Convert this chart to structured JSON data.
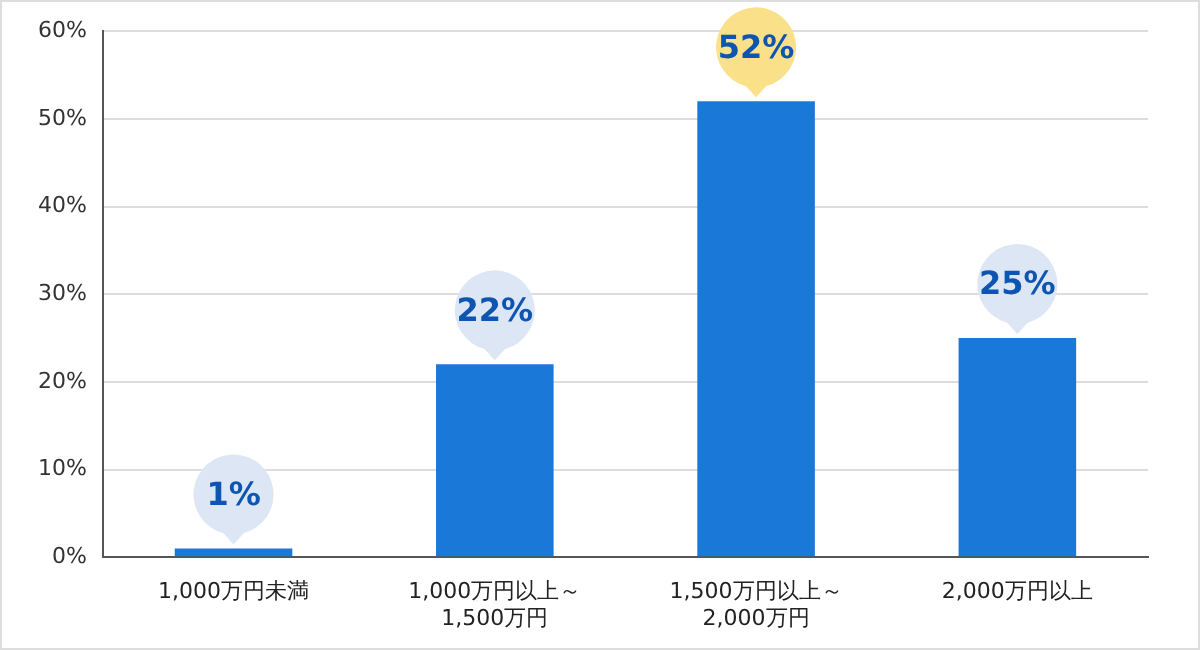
{
  "chart_data": {
    "type": "bar",
    "categories": [
      "1,000万円未満",
      "1,000万円以上～\n1,500万円",
      "1,500万円以上～\n2,000万円",
      "2,000万円以上"
    ],
    "values": [
      1,
      22,
      52,
      25
    ],
    "color": "#1a78d8",
    "value_labels": [
      "1%",
      "22%",
      "52%",
      "25%"
    ],
    "ylim": [
      0,
      60
    ],
    "yticks": [
      {
        "value": 0,
        "label": "0%"
      },
      {
        "value": 10,
        "label": "10%"
      },
      {
        "value": 20,
        "label": "20%"
      },
      {
        "value": 30,
        "label": "30%"
      },
      {
        "value": 40,
        "label": "40%"
      },
      {
        "value": 50,
        "label": "50%"
      },
      {
        "value": 60,
        "label": "60%"
      }
    ],
    "grid": "y",
    "legend": false
  }
}
